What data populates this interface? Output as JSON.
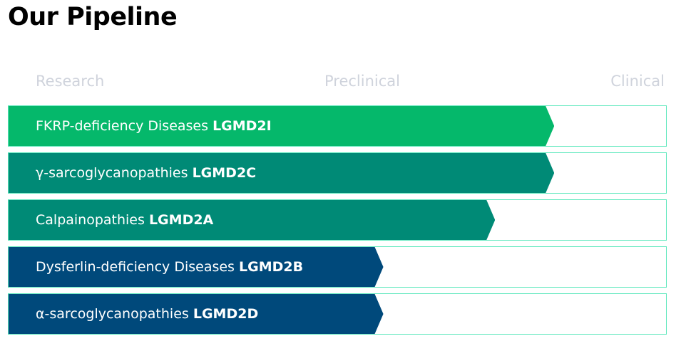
{
  "page": {
    "title": "Our Pipeline"
  },
  "stages": {
    "research": "Research",
    "preclinical": "Preclinical",
    "clinical": "Clinical"
  },
  "pipeline": [
    {
      "name": "FKRP-deficiency Diseases ",
      "code": "LGMD2I",
      "progress_pct": 83,
      "color": "#05b86b"
    },
    {
      "name": "γ-sarcoglycanopathies",
      "code": "LGMD2C",
      "progress_pct": 83,
      "color": "#008a76"
    },
    {
      "name": "Calpainopathies",
      "code": "LGMD2A",
      "progress_pct": 74,
      "color": "#008a76"
    },
    {
      "name": "Dysferlin-deficiency Diseases",
      "code": "LGMD2B",
      "progress_pct": 57,
      "color": "#00497b"
    },
    {
      "name": "α-sarcoglycanopathies",
      "code": "LGMD2D",
      "progress_pct": 57,
      "color": "#00497b"
    }
  ]
}
